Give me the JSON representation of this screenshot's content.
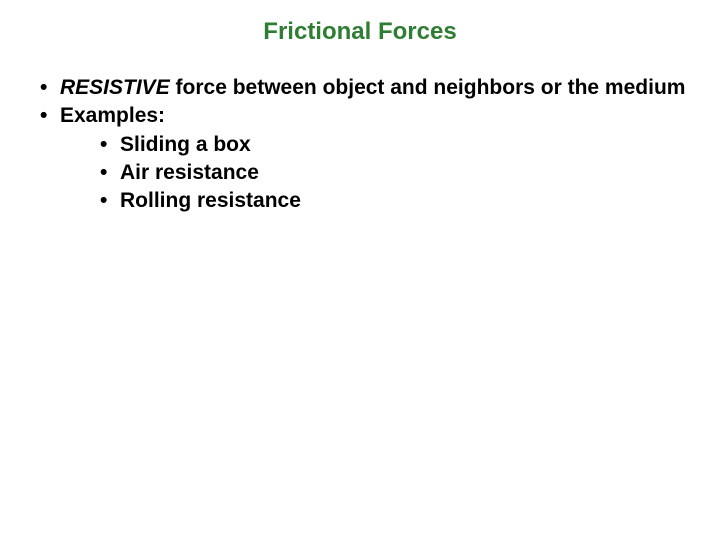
{
  "title": {
    "text": "Frictional Forces",
    "color": "#2e7d32",
    "fontsize": 24,
    "fontweight": "bold"
  },
  "body": {
    "color": "#000000",
    "fontsize": 21,
    "fontweight": "bold",
    "items": [
      {
        "emphasis_word": "RESISTIVE",
        "rest": " force between object and neighbors or the medium"
      },
      {
        "text": "Examples:",
        "subitems": [
          "Sliding a box",
          "Air resistance",
          "Rolling resistance"
        ]
      }
    ]
  },
  "background_color": "#ffffff"
}
